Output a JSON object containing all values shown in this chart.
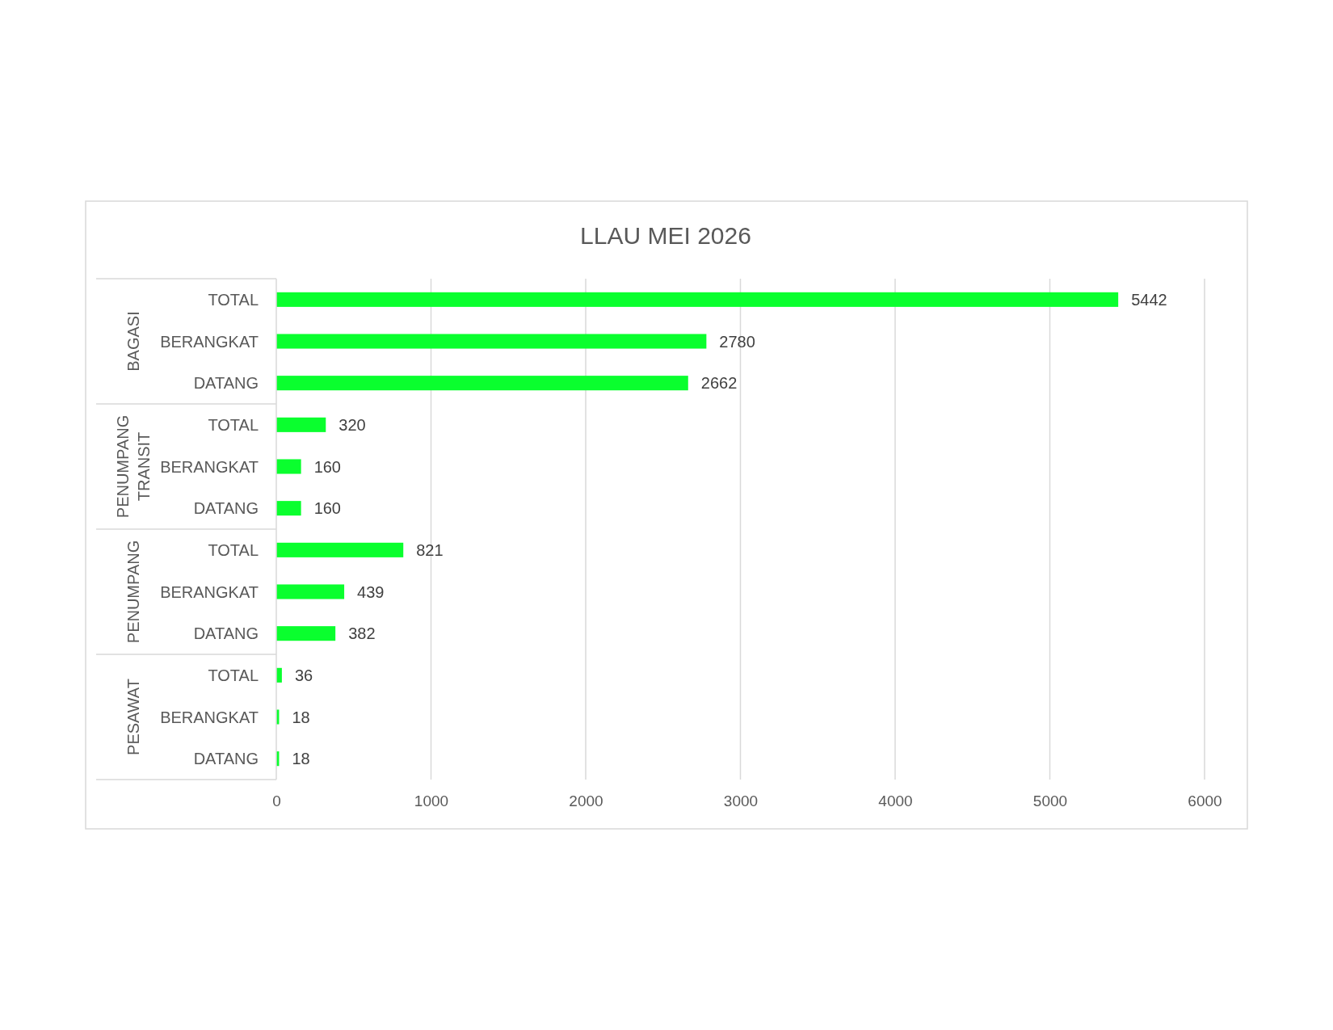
{
  "chart_data": {
    "type": "bar",
    "orientation": "horizontal",
    "title": "LLAU MEI 2026",
    "categories": [
      "TOTAL",
      "BERANGKAT",
      "DATANG",
      "TOTAL",
      "BERANGKAT",
      "DATANG",
      "TOTAL",
      "BERANGKAT",
      "DATANG",
      "TOTAL",
      "BERANGKAT",
      "DATANG"
    ],
    "values": [
      5442,
      2780,
      2662,
      320,
      160,
      160,
      821,
      439,
      382,
      36,
      18,
      18
    ],
    "color": "#0aff2e",
    "xlim": [
      0,
      6000
    ],
    "xticks": [
      0,
      1000,
      2000,
      3000,
      4000,
      5000,
      6000
    ],
    "grid": "x",
    "data_labels": true,
    "annotations": [
      "BAGASI",
      "PENUMPANG TRANSIT",
      "PENUMPANG",
      "PESAWAT"
    ]
  }
}
